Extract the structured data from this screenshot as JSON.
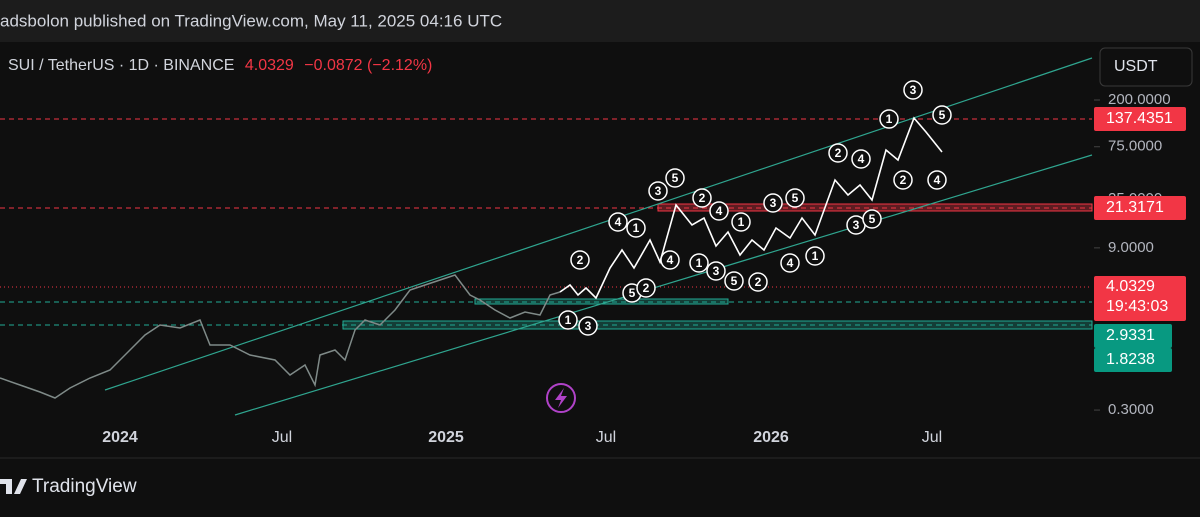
{
  "header": {
    "text": "adsbolon published on TradingView.com, May 11, 2025 04:16 UTC"
  },
  "legend": {
    "symbol": "SUI / TetherUS · 1D · BINANCE",
    "price": "4.0329",
    "change": "−0.0872 (−2.12%)"
  },
  "currency_button": "USDT",
  "price_axis": {
    "ticks": [
      {
        "value": 200,
        "label": "200.0000"
      },
      {
        "value": 75,
        "label": "75.0000"
      },
      {
        "value": 25,
        "label": "25.0000"
      },
      {
        "value": 9,
        "label": "9.0000"
      },
      {
        "value": 0.3,
        "label": "0.3000"
      }
    ]
  },
  "price_labels": [
    {
      "text": "137.4351",
      "kind": "red"
    },
    {
      "text": "21.3171",
      "kind": "red"
    },
    {
      "text": "4.0329",
      "kind": "red"
    },
    {
      "text": "19:43:03",
      "kind": "red"
    },
    {
      "text": "2.9331",
      "kind": "green"
    },
    {
      "text": "1.8238",
      "kind": "green"
    }
  ],
  "time_axis": [
    {
      "label": "2024",
      "bold": true
    },
    {
      "label": "Jul",
      "bold": false
    },
    {
      "label": "2025",
      "bold": true
    },
    {
      "label": "Jul",
      "bold": false
    },
    {
      "label": "2026",
      "bold": true
    },
    {
      "label": "Jul",
      "bold": false
    }
  ],
  "wave_labels": [
    "2",
    "4",
    "1",
    "3",
    "5",
    "2",
    "4",
    "1",
    "3",
    "5",
    "2",
    "4",
    "1",
    "3",
    "5",
    "2",
    "4",
    "1",
    "3",
    "5",
    "2",
    "4",
    "1",
    "3",
    "5",
    "2",
    "4",
    "1",
    "3",
    "5"
  ],
  "footer": {
    "brand": "TradingView"
  }
}
